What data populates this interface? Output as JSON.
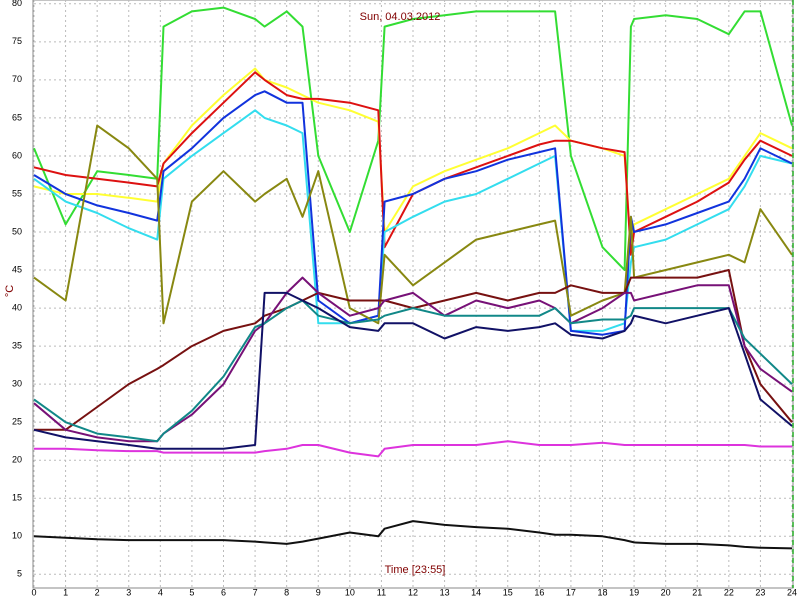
{
  "chart_data": {
    "type": "line",
    "title": "Sun, 04.03.2012",
    "x_label": "Time [23:55]",
    "y_label": "°C",
    "x": [
      0,
      1,
      2,
      3,
      3.9,
      4.1,
      5,
      6,
      7,
      7.3,
      8,
      8.5,
      9,
      10,
      10.9,
      11.1,
      12,
      13,
      14,
      15,
      16,
      16.5,
      17,
      18,
      18.7,
      18.9,
      19,
      20,
      21,
      22,
      22.5,
      23,
      24
    ],
    "series": [
      {
        "color": "#33dd33",
        "values": [
          61,
          51,
          58,
          57.5,
          57,
          77,
          79,
          79.5,
          78,
          77,
          79,
          77,
          60,
          50,
          62,
          77,
          78,
          78.5,
          79,
          79,
          79,
          79,
          60,
          48,
          45,
          77,
          78,
          78.5,
          78,
          76,
          79,
          79,
          64
        ]
      },
      {
        "color": "#ffff33",
        "values": [
          56,
          55,
          55,
          54.5,
          54,
          59,
          64,
          68,
          71.5,
          70,
          69,
          68,
          67,
          66,
          64.5,
          50,
          56,
          58,
          59.5,
          61,
          63,
          64,
          62,
          61,
          60,
          48,
          51,
          53,
          55,
          57,
          60,
          63,
          61
        ]
      },
      {
        "color": "#dd1111",
        "values": [
          58.5,
          57.5,
          57,
          56.5,
          56,
          59,
          63,
          67,
          71,
          70,
          68,
          67.5,
          67.5,
          67,
          66,
          48,
          55,
          57,
          58.5,
          60,
          61.5,
          62,
          62,
          61,
          60.5,
          47,
          50,
          52,
          54,
          56.5,
          59.5,
          62,
          60
        ]
      },
      {
        "color": "#33ddee",
        "values": [
          57,
          54,
          52.5,
          50.5,
          49,
          57,
          60,
          63,
          66,
          65,
          64,
          63,
          38,
          38,
          39,
          50,
          52,
          54,
          55,
          57,
          59,
          60,
          37,
          37,
          38,
          46,
          48,
          49,
          51,
          53,
          56,
          60,
          59
        ]
      },
      {
        "color": "#1133dd",
        "values": [
          57.5,
          55,
          53.5,
          52.5,
          51.5,
          58,
          61,
          65,
          68,
          68.5,
          67,
          67,
          41,
          38,
          39,
          54,
          55,
          57,
          58,
          59.5,
          60.5,
          61,
          37,
          36.5,
          37,
          52,
          50,
          51,
          52.5,
          54,
          57,
          61,
          59
        ]
      },
      {
        "color": "#888811",
        "values": [
          44,
          41,
          64,
          61,
          57,
          38,
          54,
          58,
          54,
          55,
          57,
          52,
          58,
          40,
          38,
          47,
          43,
          46,
          49,
          50,
          51,
          51.5,
          39,
          41,
          42,
          52,
          44,
          45,
          46,
          47,
          46,
          53,
          47
        ]
      },
      {
        "color": "#771111",
        "values": [
          24,
          24,
          27,
          30,
          32,
          32.5,
          35,
          37,
          38,
          39,
          40,
          41,
          42,
          41,
          41,
          41,
          40,
          41,
          42,
          41,
          42,
          42,
          43,
          42,
          42,
          44,
          44,
          44,
          44,
          45,
          35,
          30,
          25
        ]
      },
      {
        "color": "#771177",
        "values": [
          27.5,
          24,
          23,
          22.5,
          22.5,
          23.5,
          26,
          30,
          37,
          38,
          42,
          44,
          42,
          39,
          40,
          41,
          42,
          39,
          41,
          40,
          41,
          40,
          38,
          40,
          42,
          42,
          41,
          42,
          43,
          43,
          35,
          32,
          29
        ]
      },
      {
        "color": "#118888",
        "values": [
          28,
          25,
          23.5,
          23,
          22.5,
          23.5,
          26.5,
          31,
          37.5,
          38,
          40,
          41,
          39,
          38,
          38.5,
          39,
          40,
          39,
          39,
          39,
          39,
          40,
          38,
          38.5,
          38.5,
          39,
          40,
          40,
          40,
          40,
          36,
          34,
          30
        ]
      },
      {
        "color": "#111166",
        "values": [
          24,
          23,
          22.5,
          22,
          21.5,
          21.5,
          21.5,
          21.5,
          22,
          42,
          42,
          41,
          40,
          37.5,
          37,
          38,
          38,
          36,
          37.5,
          37,
          37.5,
          38,
          36.5,
          36,
          37,
          38,
          39,
          38,
          39,
          40,
          34,
          28,
          24.5
        ]
      },
      {
        "color": "#dd33dd",
        "values": [
          21.5,
          21.5,
          21.3,
          21.2,
          21.2,
          21,
          21,
          21,
          21,
          21.2,
          21.5,
          22,
          22,
          21,
          20.5,
          21.5,
          22,
          22,
          22,
          22.5,
          22,
          22,
          22,
          22.3,
          22,
          22,
          22,
          22,
          22,
          22,
          22,
          21.8,
          21.8
        ]
      },
      {
        "color": "#111111",
        "values": [
          10,
          9.8,
          9.6,
          9.5,
          9.5,
          9.5,
          9.5,
          9.5,
          9.3,
          9.2,
          9,
          9.3,
          9.7,
          10.5,
          10,
          11,
          12,
          11.5,
          11.2,
          11,
          10.5,
          10.2,
          10.2,
          10,
          9.5,
          9.3,
          9.2,
          9,
          9,
          8.8,
          8.6,
          8.5,
          8.4
        ]
      }
    ],
    "xlim": [
      0,
      24
    ],
    "xticks": [
      0,
      1,
      2,
      3,
      4,
      5,
      6,
      7,
      8,
      9,
      10,
      11,
      12,
      13,
      14,
      15,
      16,
      17,
      18,
      19,
      20,
      21,
      22,
      23,
      24
    ],
    "ylim": [
      3.2,
      80.5
    ],
    "yticks": [
      5,
      10,
      15,
      20,
      25,
      30,
      35,
      40,
      45,
      50,
      55,
      60,
      65,
      70,
      75,
      80
    ],
    "grid": true
  }
}
